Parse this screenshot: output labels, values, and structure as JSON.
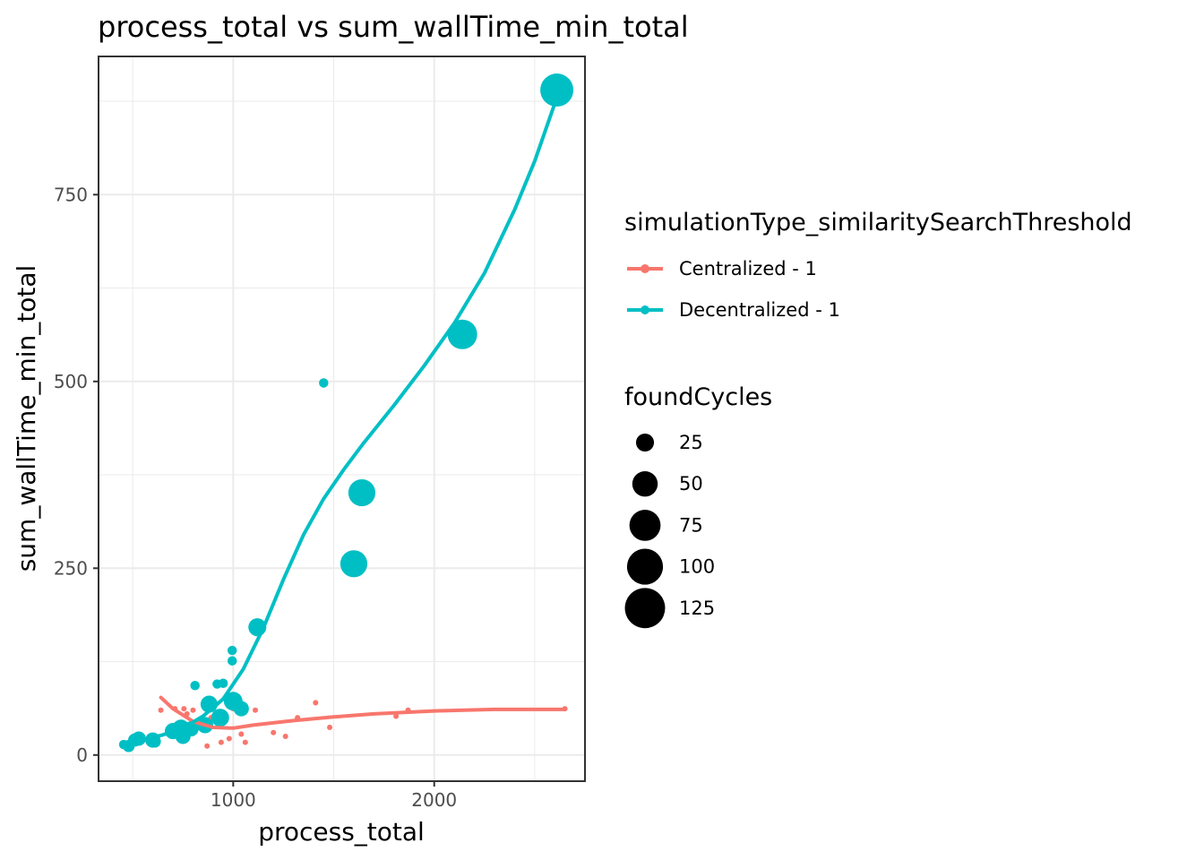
{
  "chart_data": {
    "type": "scatter",
    "title": "process_total  vs  sum_wallTime_min_total",
    "xlabel": "process_total",
    "ylabel": "sum_wallTime_min_total",
    "xlim": [
      330,
      2750
    ],
    "ylim": [
      -35,
      935
    ],
    "x_ticks": [
      1000,
      2000
    ],
    "x_tick_labels": [
      "1000",
      "2000"
    ],
    "y_ticks": [
      0,
      250,
      500,
      750
    ],
    "y_tick_labels": [
      "0",
      "250",
      "500",
      "750"
    ],
    "grid": true,
    "legend_position": "right",
    "color_legend": {
      "title": "simulationType_similaritySearchThreshold"
    },
    "size_legend": {
      "title": "foundCycles",
      "breaks": [
        25,
        50,
        75,
        100,
        125
      ],
      "labels": [
        "25",
        "50",
        "75",
        "100",
        "125"
      ]
    },
    "series": [
      {
        "name": "Centralized - 1",
        "color": "#F8766D",
        "points": [
          {
            "x": 640,
            "y": 60,
            "size": 2
          },
          {
            "x": 710,
            "y": 62,
            "size": 2
          },
          {
            "x": 755,
            "y": 62,
            "size": 2
          },
          {
            "x": 770,
            "y": 55,
            "size": 2
          },
          {
            "x": 800,
            "y": 60,
            "size": 2
          },
          {
            "x": 830,
            "y": 45,
            "size": 2
          },
          {
            "x": 870,
            "y": 12,
            "size": 2
          },
          {
            "x": 890,
            "y": 50,
            "size": 2
          },
          {
            "x": 940,
            "y": 17,
            "size": 2
          },
          {
            "x": 980,
            "y": 22,
            "size": 2
          },
          {
            "x": 1000,
            "y": 62,
            "size": 2
          },
          {
            "x": 1040,
            "y": 28,
            "size": 2
          },
          {
            "x": 1060,
            "y": 17,
            "size": 2
          },
          {
            "x": 1110,
            "y": 60,
            "size": 2
          },
          {
            "x": 1200,
            "y": 30,
            "size": 2
          },
          {
            "x": 1260,
            "y": 25,
            "size": 2
          },
          {
            "x": 1320,
            "y": 50,
            "size": 2
          },
          {
            "x": 1410,
            "y": 70,
            "size": 2
          },
          {
            "x": 1480,
            "y": 37,
            "size": 2
          },
          {
            "x": 1810,
            "y": 52,
            "size": 2
          },
          {
            "x": 1870,
            "y": 60,
            "size": 2
          },
          {
            "x": 2650,
            "y": 62,
            "size": 2
          }
        ],
        "smooth": [
          {
            "x": 640,
            "y": 77
          },
          {
            "x": 700,
            "y": 62
          },
          {
            "x": 800,
            "y": 45
          },
          {
            "x": 900,
            "y": 37
          },
          {
            "x": 1000,
            "y": 36
          },
          {
            "x": 1100,
            "y": 40
          },
          {
            "x": 1300,
            "y": 46
          },
          {
            "x": 1500,
            "y": 51
          },
          {
            "x": 1700,
            "y": 55
          },
          {
            "x": 2000,
            "y": 59
          },
          {
            "x": 2300,
            "y": 61
          },
          {
            "x": 2650,
            "y": 61
          }
        ]
      },
      {
        "name": "Decentralized - 1",
        "color": "#00BFC4",
        "points": [
          {
            "x": 455,
            "y": 14,
            "size": 6
          },
          {
            "x": 480,
            "y": 12,
            "size": 10
          },
          {
            "x": 510,
            "y": 20,
            "size": 12
          },
          {
            "x": 530,
            "y": 22,
            "size": 14
          },
          {
            "x": 600,
            "y": 20,
            "size": 16
          },
          {
            "x": 610,
            "y": 18,
            "size": 10
          },
          {
            "x": 700,
            "y": 32,
            "size": 18
          },
          {
            "x": 740,
            "y": 36,
            "size": 20
          },
          {
            "x": 750,
            "y": 25,
            "size": 16
          },
          {
            "x": 790,
            "y": 35,
            "size": 16
          },
          {
            "x": 810,
            "y": 93,
            "size": 6
          },
          {
            "x": 860,
            "y": 40,
            "size": 18
          },
          {
            "x": 880,
            "y": 68,
            "size": 20
          },
          {
            "x": 920,
            "y": 95,
            "size": 6
          },
          {
            "x": 935,
            "y": 50,
            "size": 22
          },
          {
            "x": 950,
            "y": 96,
            "size": 6
          },
          {
            "x": 995,
            "y": 126,
            "size": 6
          },
          {
            "x": 995,
            "y": 140,
            "size": 6
          },
          {
            "x": 1000,
            "y": 72,
            "size": 24
          },
          {
            "x": 1040,
            "y": 62,
            "size": 16
          },
          {
            "x": 1120,
            "y": 171,
            "size": 22
          },
          {
            "x": 1450,
            "y": 498,
            "size": 6
          },
          {
            "x": 1600,
            "y": 256,
            "size": 50
          },
          {
            "x": 1640,
            "y": 351,
            "size": 50
          },
          {
            "x": 2140,
            "y": 563,
            "size": 60
          },
          {
            "x": 2610,
            "y": 890,
            "size": 75
          }
        ],
        "smooth": [
          {
            "x": 455,
            "y": 14
          },
          {
            "x": 550,
            "y": 20
          },
          {
            "x": 650,
            "y": 27
          },
          {
            "x": 750,
            "y": 36
          },
          {
            "x": 850,
            "y": 52
          },
          {
            "x": 950,
            "y": 75
          },
          {
            "x": 1050,
            "y": 115
          },
          {
            "x": 1150,
            "y": 170
          },
          {
            "x": 1250,
            "y": 235
          },
          {
            "x": 1350,
            "y": 295
          },
          {
            "x": 1450,
            "y": 343
          },
          {
            "x": 1550,
            "y": 382
          },
          {
            "x": 1650,
            "y": 418
          },
          {
            "x": 1800,
            "y": 468
          },
          {
            "x": 1950,
            "y": 521
          },
          {
            "x": 2100,
            "y": 578
          },
          {
            "x": 2250,
            "y": 645
          },
          {
            "x": 2400,
            "y": 730
          },
          {
            "x": 2500,
            "y": 795
          },
          {
            "x": 2610,
            "y": 880
          }
        ]
      }
    ]
  }
}
